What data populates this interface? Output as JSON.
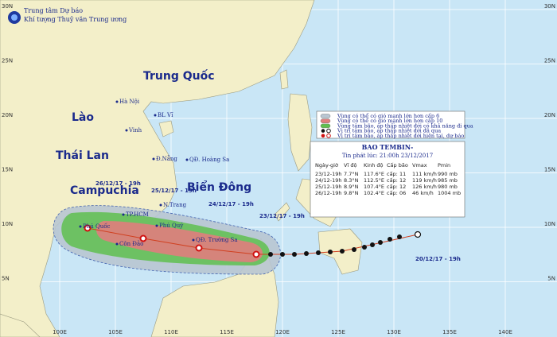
{
  "header": {
    "agency": [
      "Trung tâm Dự báo",
      "Khí tượng Thuỷ văn Trung ương"
    ]
  },
  "countries": [
    "Trung Quốc",
    "Lào",
    "Thái Lan",
    "Campuchia",
    "Biển Đông"
  ],
  "places": [
    "Hà Nội",
    "BL Vĩ",
    "Vinh",
    "Đ.Nẵng",
    "QĐ. Hoàng Sa",
    "N.Trang",
    "TP.HCM",
    "Phú Quý",
    "Phú Quốc",
    "Côn Đảo",
    "QĐ. Trường Sa"
  ],
  "longitudes": [
    "100E",
    "105E",
    "110E",
    "115E",
    "120E",
    "125E",
    "130E",
    "135E",
    "140E"
  ],
  "latitudes": [
    "30N",
    "25N",
    "20N",
    "15N",
    "10N",
    "5N"
  ],
  "track_labels": [
    "26/12/17 - 19h",
    "25/12/17 - 19h",
    "24/12/17 - 19h",
    "23/12/17 - 19h",
    "20/12/17 - 19h"
  ],
  "legend": [
    "Vùng có thể có gió mạnh lớn hơn cấp 6",
    "Vùng có thể có gió mạnh lớn hơn cấp 10",
    "Vùng tâm bão, áp thấp nhiệt đới có khả năng đi qua",
    "Vị trí tâm bão, áp thấp nhiệt đới đã qua",
    "Vị trí tâm bão, áp thấp nhiệt đới hiện tại, dự báo"
  ],
  "info": {
    "title": "BAO TEMBIN-",
    "issued": "Tin phát lúc: 21:00h 23/12/2017",
    "columns": [
      "Ngày-giờ",
      "Vĩ độ",
      "Kinh độ",
      "Cấp bão",
      "Vmax",
      "Pmin"
    ],
    "rows": [
      [
        "23/12-19h",
        "7.7°N",
        "117.6°E",
        "cấp: 11",
        "111 km/h",
        "990 mb"
      ],
      [
        "24/12-19h",
        "8.3°N",
        "112.5°E",
        "cấp: 12",
        "119 km/h",
        "985 mb"
      ],
      [
        "25/12-19h",
        "8.9°N",
        "107.4°E",
        "cấp: 12",
        "126 km/h",
        "980 mb"
      ],
      [
        "26/12-19h",
        "9.8°N",
        "102.4°E",
        "cấp: 06",
        "46 km/h",
        "1004 mb"
      ]
    ]
  }
}
